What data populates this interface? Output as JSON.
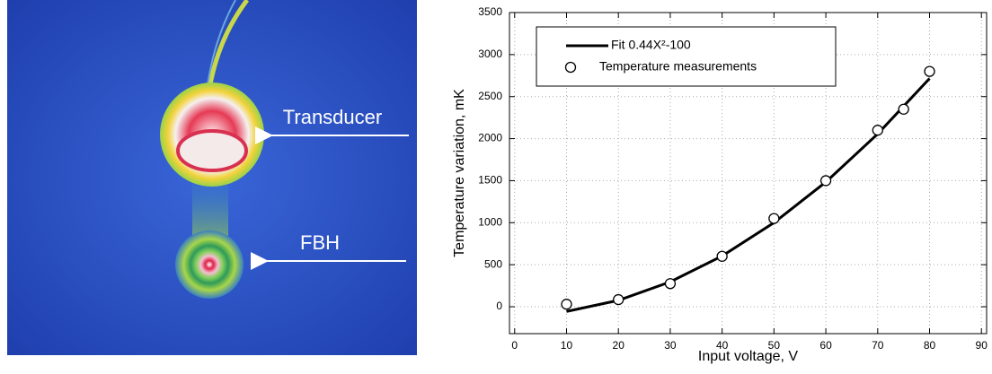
{
  "image_labels": [
    "Transducer",
    "FBH"
  ],
  "chart_data": {
    "type": "line",
    "x_label": "Input voltage, V",
    "y_label": "Temperature variation, mK",
    "series": [
      {
        "name": "Fit 0.44X²-100",
        "style": "line",
        "color": "#000000",
        "x": [
          10,
          20,
          30,
          40,
          50,
          60,
          70,
          80
        ],
        "values": [
          -56,
          76,
          296,
          604,
          1000,
          1484,
          2056,
          2716
        ]
      },
      {
        "name": "Temperature measurements",
        "style": "marker",
        "color": "#000000",
        "x": [
          10,
          20,
          30,
          40,
          50,
          60,
          70,
          75,
          80
        ],
        "values": [
          30,
          85,
          275,
          600,
          1050,
          1500,
          2100,
          2350,
          2800
        ]
      }
    ],
    "xlim": [
      -1,
      91
    ],
    "ylim": [
      -320,
      3500
    ],
    "xticks": [
      0,
      10,
      20,
      30,
      40,
      50,
      60,
      70,
      80,
      90
    ],
    "yticks": [
      0,
      500,
      1000,
      1500,
      2000,
      2500,
      3000,
      3500
    ],
    "grid": true,
    "legend": "upper-left"
  }
}
